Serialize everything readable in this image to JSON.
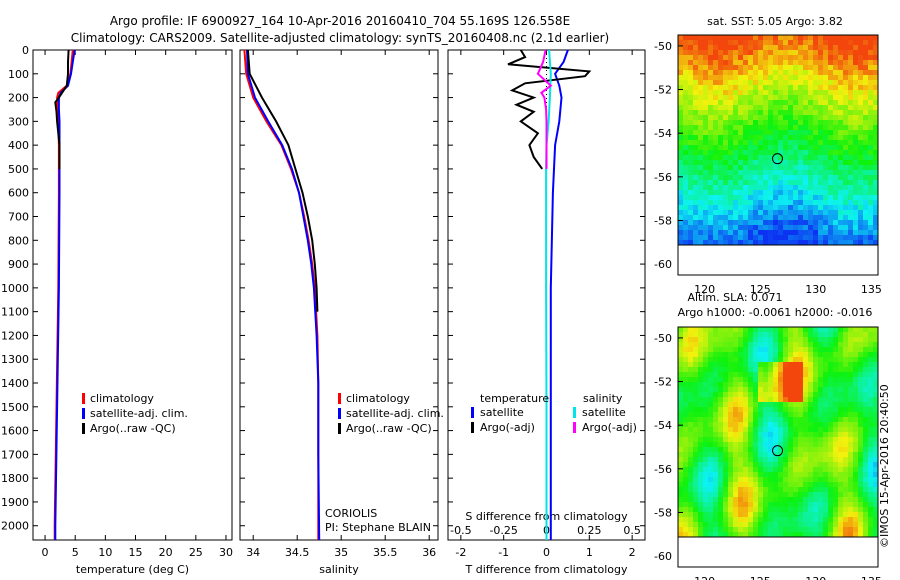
{
  "header": {
    "line1": "Argo profile: IF 6900927_164 10-Apr-2016 20160410_704 55.169S 126.558E",
    "line2": "Climatology: CARS2009. Satellite-adjusted climatology: synTS_20160408.nc (2.1d earlier)"
  },
  "colors": {
    "climatology": "#ff0000",
    "satellite": "#0000ff",
    "argo": "#000000",
    "salinity_sat": "#00e5e5",
    "salinity_argo": "#ff00ff"
  },
  "chart_data": [
    {
      "type": "line",
      "xlabel": "temperature (deg C)",
      "ylabel": "",
      "xlim": [
        -2,
        31
      ],
      "ylim": [
        2060,
        0
      ],
      "xticks": [
        "0",
        "5",
        "10",
        "15",
        "20",
        "25",
        "30"
      ],
      "yticks": [
        "0",
        "100",
        "200",
        "300",
        "400",
        "500",
        "600",
        "700",
        "800",
        "900",
        "1000",
        "1100",
        "1200",
        "1300",
        "1400",
        "1500",
        "1600",
        "1700",
        "1800",
        "1900",
        "2000"
      ],
      "legend": [
        "climatology",
        "satellite-adj. clim.",
        "Argo(..raw -QC)"
      ],
      "series": [
        {
          "name": "climatology",
          "depth": [
            0,
            50,
            100,
            150,
            180,
            200,
            250,
            300,
            400,
            600,
            1000,
            1500,
            2000,
            2060
          ],
          "values": [
            4.6,
            4.4,
            4.2,
            3.6,
            2.2,
            2.0,
            2.1,
            2.2,
            2.3,
            2.3,
            2.2,
            1.9,
            1.6,
            1.6
          ]
        },
        {
          "name": "satellite-adj. clim.",
          "depth": [
            0,
            50,
            100,
            150,
            180,
            200,
            250,
            300,
            400,
            600,
            1000,
            1500,
            2000,
            2060
          ],
          "values": [
            4.9,
            4.6,
            4.3,
            3.8,
            2.6,
            2.3,
            2.3,
            2.4,
            2.4,
            2.4,
            2.3,
            2.0,
            1.7,
            1.7
          ]
        },
        {
          "name": "Argo(..raw -QC)",
          "depth": [
            0,
            50,
            100,
            150,
            200,
            220,
            260,
            300,
            350,
            400,
            450,
            500
          ],
          "values": [
            3.9,
            3.8,
            3.8,
            3.6,
            2.3,
            1.7,
            1.9,
            2.0,
            2.2,
            2.4,
            2.4,
            2.4
          ]
        }
      ]
    },
    {
      "type": "line",
      "xlabel": "salinity",
      "xlim": [
        33.85,
        36.1
      ],
      "ylim": [
        2060,
        0
      ],
      "xticks": [
        "34",
        "34.5",
        "35",
        "35.5",
        "36"
      ],
      "legend": [
        "climatology",
        "satellite-adj. clim.",
        "Argo(..raw -QC)"
      ],
      "annotations": [
        "CORIOLIS",
        "PI: Stephane BLAIN"
      ],
      "series": [
        {
          "name": "climatology",
          "depth": [
            0,
            100,
            200,
            300,
            400,
            500,
            600,
            700,
            800,
            900,
            1000,
            1200,
            1400,
            1700,
            2060
          ],
          "values": [
            33.9,
            33.92,
            34.0,
            34.15,
            34.32,
            34.43,
            34.52,
            34.58,
            34.63,
            34.67,
            34.7,
            34.73,
            34.74,
            34.74,
            34.74
          ]
        },
        {
          "name": "satellite-adj. clim.",
          "depth": [
            0,
            100,
            200,
            300,
            400,
            500,
            600,
            700,
            800,
            900,
            1000,
            1200,
            1400,
            1700,
            2060
          ],
          "values": [
            33.93,
            33.94,
            34.02,
            34.17,
            34.33,
            34.44,
            34.52,
            34.57,
            34.62,
            34.66,
            34.69,
            34.72,
            34.74,
            34.74,
            34.75
          ]
        },
        {
          "name": "Argo(..raw -QC)",
          "depth": [
            0,
            100,
            200,
            300,
            400,
            500,
            600,
            700,
            800,
            900,
            1000,
            1100
          ],
          "values": [
            33.94,
            33.96,
            34.1,
            34.26,
            34.4,
            34.48,
            34.56,
            34.62,
            34.67,
            34.7,
            34.72,
            34.73
          ]
        }
      ]
    },
    {
      "type": "line",
      "xlabel": "T difference from climatology",
      "xlabel_top": "S difference from climatology",
      "xlim": [
        -2.3,
        2.3
      ],
      "ylim": [
        2060,
        0
      ],
      "xticks": [
        "-2",
        "-1",
        "0",
        "1",
        "2"
      ],
      "xticks_top": [
        "-0.5",
        "-0.25",
        "0",
        "0.25",
        "0.5"
      ],
      "legend": [
        "temperature",
        "satellite",
        "Argo(-adj)",
        "salinity",
        "satellite",
        "Argo(-adj)"
      ],
      "series": [
        {
          "name": "satellite",
          "depth": [
            0,
            50,
            100,
            150,
            200,
            300,
            400,
            600,
            1000,
            1500,
            2060
          ],
          "values": [
            0.5,
            0.4,
            0.2,
            0.3,
            0.35,
            0.3,
            0.2,
            0.15,
            0.1,
            0.1,
            0.1
          ]
        },
        {
          "name": "Argo(-adj)",
          "depth": [
            0,
            30,
            60,
            90,
            110,
            140,
            170,
            200,
            230,
            260,
            300,
            350,
            400,
            450,
            500
          ],
          "values": [
            -0.6,
            -0.5,
            -0.9,
            1.0,
            0.9,
            -0.5,
            -0.8,
            -0.3,
            -0.7,
            -0.3,
            -0.6,
            -0.2,
            -0.4,
            -0.3,
            -0.1
          ]
        },
        {
          "name": "satellite",
          "depth": [
            0,
            100,
            200,
            300,
            400,
            500,
            700,
            1000,
            1500,
            2060
          ],
          "values": [
            0.06,
            0.1,
            0.08,
            0.05,
            0.0,
            -0.01,
            -0.01,
            -0.01,
            0.0,
            0.0
          ]
        },
        {
          "name": "Argo(-adj)",
          "depth": [
            0,
            50,
            100,
            150,
            180,
            200,
            250,
            300,
            400,
            500
          ],
          "values": [
            -0.02,
            -0.08,
            -0.2,
            0.1,
            -0.12,
            -0.05,
            -0.01,
            0.0,
            0.0,
            0.0
          ]
        }
      ]
    },
    {
      "type": "heatmap",
      "title": "sat. SST: 5.05 Argo: 3.82",
      "xticks": [
        "120",
        "125",
        "130",
        "135"
      ],
      "yticks": [
        "-50",
        "-52",
        "-54",
        "-56",
        "-58",
        "-60"
      ]
    },
    {
      "type": "heatmap",
      "title": "Altim. SLA: 0.071",
      "subtitle": "Argo h1000: -0.0061 h2000: -0.016",
      "xticks": [
        "120",
        "125",
        "130",
        "135"
      ],
      "yticks": [
        "-50",
        "-52",
        "-54",
        "-56",
        "-58",
        "-60"
      ]
    }
  ],
  "watermark": "©IMOS 15-Apr-2016 20:40:50"
}
